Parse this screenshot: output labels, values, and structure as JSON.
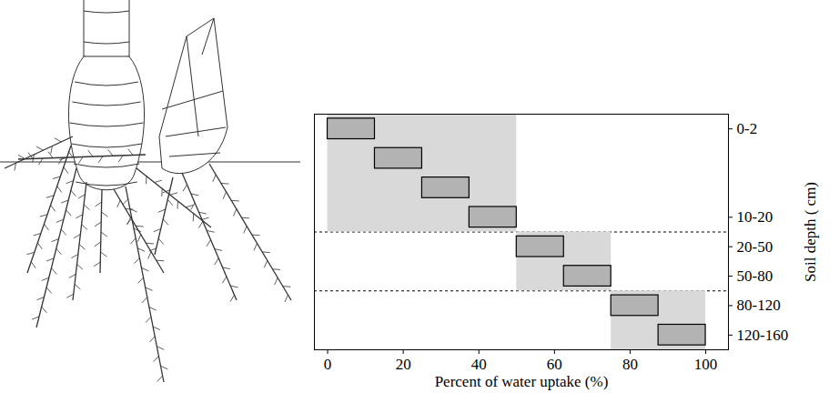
{
  "chart_data": {
    "type": "bar",
    "orientation": "horizontal",
    "stacked": true,
    "x_label": "Percent of water uptake (%)",
    "y_label": "Soil depth ( cm)",
    "categories": [
      "0-2",
      null,
      null,
      "10-20",
      "20-50",
      "50-80",
      "80-120",
      "120-160"
    ],
    "values": [
      12.5,
      12.5,
      12.5,
      12.5,
      12.5,
      12.5,
      12.5,
      12.5
    ],
    "color": "#b3b3b3",
    "xlim": [
      -3.5,
      106
    ],
    "xticks": [
      0,
      20,
      40,
      60,
      80,
      100
    ],
    "groups": {
      "values": [
        50,
        25,
        25
      ],
      "counts": [
        4,
        2,
        2
      ],
      "color": "#d9d9d9"
    }
  }
}
